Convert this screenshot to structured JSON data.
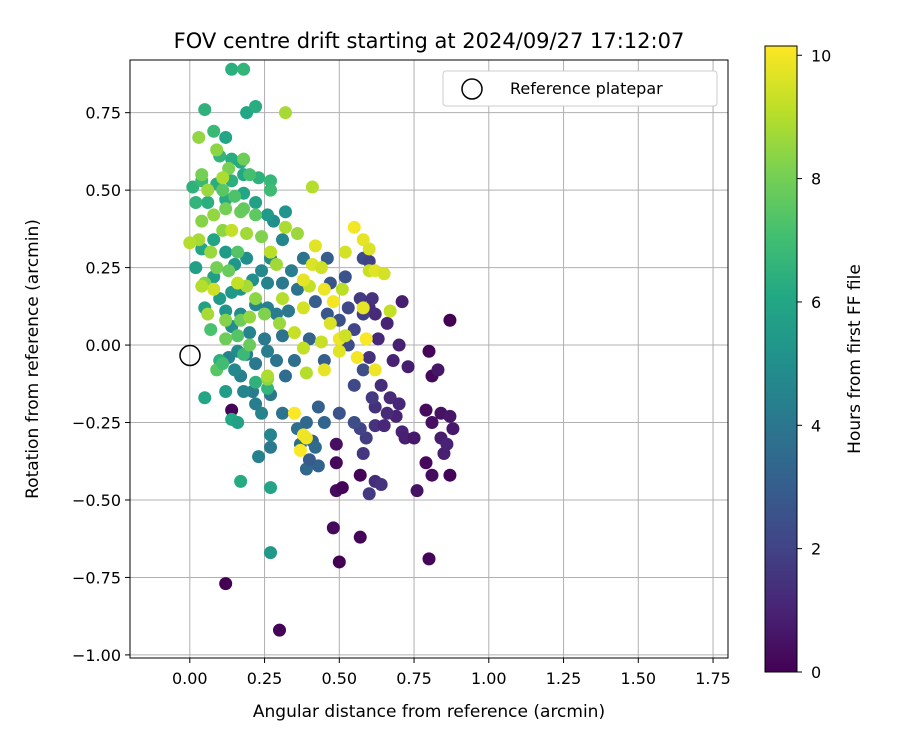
{
  "chart_data": {
    "type": "scatter",
    "title": "FOV centre drift starting at 2024/09/27 17:12:07",
    "xlabel": "Angular distance from reference (arcmin)",
    "ylabel": "Rotation from reference (arcmin)",
    "xlim": [
      -0.2,
      1.8
    ],
    "ylim": [
      -1.01,
      0.92
    ],
    "xticks": [
      "0.00",
      "0.25",
      "0.50",
      "0.75",
      "1.00",
      "1.25",
      "1.50",
      "1.75"
    ],
    "yticks": [
      "−1.00",
      "−0.75",
      "−0.50",
      "−0.25",
      "0.00",
      "0.25",
      "0.50",
      "0.75"
    ],
    "grid": true,
    "legend": {
      "position": "top-right",
      "entries": [
        {
          "label": "Reference platepar",
          "marker": "open-circle",
          "x": 0.0,
          "y": 0.0
        }
      ]
    },
    "colorbar": {
      "label": "Hours from first FF file",
      "min": 0,
      "max": 10.15,
      "ticks": [
        "0",
        "2",
        "4",
        "6",
        "8",
        "10"
      ],
      "colormap": "viridis"
    },
    "points": [
      {
        "x": 0.87,
        "y": 0.08,
        "h": 0
      },
      {
        "x": 0.8,
        "y": -0.02,
        "h": 0.1
      },
      {
        "x": 0.81,
        "y": -0.1,
        "h": 0.2
      },
      {
        "x": 0.79,
        "y": -0.21,
        "h": 0.3
      },
      {
        "x": 0.81,
        "y": -0.25,
        "h": 0.4
      },
      {
        "x": 0.84,
        "y": -0.22,
        "h": 0.5
      },
      {
        "x": 0.87,
        "y": -0.23,
        "h": 0.6
      },
      {
        "x": 0.88,
        "y": -0.27,
        "h": 0.7
      },
      {
        "x": 0.84,
        "y": -0.3,
        "h": 0.8
      },
      {
        "x": 0.85,
        "y": -0.35,
        "h": 0.9
      },
      {
        "x": 0.86,
        "y": -0.32,
        "h": 1.0
      },
      {
        "x": 0.79,
        "y": -0.38,
        "h": 0.2
      },
      {
        "x": 0.81,
        "y": -0.42,
        "h": 0.3
      },
      {
        "x": 0.87,
        "y": -0.42,
        "h": 0.1
      },
      {
        "x": 0.76,
        "y": -0.47,
        "h": 0.5
      },
      {
        "x": 0.8,
        "y": -0.69,
        "h": 0.1
      },
      {
        "x": 0.57,
        "y": -0.62,
        "h": 0.1
      },
      {
        "x": 0.48,
        "y": -0.59,
        "h": 0.2
      },
      {
        "x": 0.5,
        "y": -0.7,
        "h": 0.0
      },
      {
        "x": 0.49,
        "y": -0.47,
        "h": 0.3
      },
      {
        "x": 0.51,
        "y": -0.46,
        "h": 0.1
      },
      {
        "x": 0.57,
        "y": -0.42,
        "h": 0.1
      },
      {
        "x": 0.49,
        "y": -0.38,
        "h": 0.2
      },
      {
        "x": 0.49,
        "y": -0.32,
        "h": 0.4
      },
      {
        "x": 0.12,
        "y": -0.77,
        "h": 0.0
      },
      {
        "x": 0.3,
        "y": -0.92,
        "h": 0.1
      },
      {
        "x": 0.14,
        "y": -0.21,
        "h": 0.1
      },
      {
        "x": 0.83,
        "y": -0.08,
        "h": 0.6
      },
      {
        "x": 0.73,
        "y": -0.07,
        "h": 0.8
      },
      {
        "x": 0.7,
        "y": 0.0,
        "h": 0.9
      },
      {
        "x": 0.71,
        "y": 0.14,
        "h": 0.8
      },
      {
        "x": 0.66,
        "y": 0.07,
        "h": 1.0
      },
      {
        "x": 0.62,
        "y": 0.1,
        "h": 1.2
      },
      {
        "x": 0.6,
        "y": 0.12,
        "h": 1.3
      },
      {
        "x": 0.63,
        "y": 0.02,
        "h": 1.1
      },
      {
        "x": 0.68,
        "y": -0.05,
        "h": 1.0
      },
      {
        "x": 0.6,
        "y": -0.04,
        "h": 1.4
      },
      {
        "x": 0.64,
        "y": -0.13,
        "h": 1.3
      },
      {
        "x": 0.67,
        "y": -0.17,
        "h": 1.2
      },
      {
        "x": 0.7,
        "y": -0.19,
        "h": 1.1
      },
      {
        "x": 0.69,
        "y": -0.23,
        "h": 1.0
      },
      {
        "x": 0.66,
        "y": -0.22,
        "h": 1.2
      },
      {
        "x": 0.62,
        "y": -0.2,
        "h": 1.4
      },
      {
        "x": 0.62,
        "y": -0.26,
        "h": 1.5
      },
      {
        "x": 0.65,
        "y": -0.26,
        "h": 1.1
      },
      {
        "x": 0.71,
        "y": -0.28,
        "h": 1.0
      },
      {
        "x": 0.72,
        "y": -0.3,
        "h": 0.9
      },
      {
        "x": 0.75,
        "y": -0.3,
        "h": 0.7
      },
      {
        "x": 0.62,
        "y": -0.44,
        "h": 1.3
      },
      {
        "x": 0.64,
        "y": -0.45,
        "h": 1.5
      },
      {
        "x": 0.6,
        "y": -0.48,
        "h": 1.7
      },
      {
        "x": 0.58,
        "y": -0.35,
        "h": 1.6
      },
      {
        "x": 0.59,
        "y": -0.3,
        "h": 1.8
      },
      {
        "x": 0.57,
        "y": -0.27,
        "h": 2.0
      },
      {
        "x": 0.61,
        "y": -0.17,
        "h": 1.7
      },
      {
        "x": 0.55,
        "y": -0.13,
        "h": 2.2
      },
      {
        "x": 0.58,
        "y": -0.08,
        "h": 2.4
      },
      {
        "x": 0.53,
        "y": 0.0,
        "h": 2.3
      },
      {
        "x": 0.55,
        "y": 0.05,
        "h": 2.1
      },
      {
        "x": 0.58,
        "y": 0.1,
        "h": 1.9
      },
      {
        "x": 0.57,
        "y": 0.15,
        "h": 1.7
      },
      {
        "x": 0.61,
        "y": 0.15,
        "h": 1.5
      },
      {
        "x": 0.53,
        "y": 0.12,
        "h": 2.2
      },
      {
        "x": 0.5,
        "y": 0.08,
        "h": 2.5
      },
      {
        "x": 0.46,
        "y": 0.1,
        "h": 2.8
      },
      {
        "x": 0.42,
        "y": 0.14,
        "h": 3.0
      },
      {
        "x": 0.47,
        "y": 0.2,
        "h": 2.7
      },
      {
        "x": 0.52,
        "y": 0.22,
        "h": 2.6
      },
      {
        "x": 0.58,
        "y": 0.28,
        "h": 2.3
      },
      {
        "x": 0.46,
        "y": 0.28,
        "h": 3.0
      },
      {
        "x": 0.6,
        "y": 0.27,
        "h": 2.0
      },
      {
        "x": 0.4,
        "y": 0.02,
        "h": 3.2
      },
      {
        "x": 0.45,
        "y": -0.05,
        "h": 3.0
      },
      {
        "x": 0.43,
        "y": -0.2,
        "h": 3.1
      },
      {
        "x": 0.45,
        "y": -0.25,
        "h": 3.3
      },
      {
        "x": 0.43,
        "y": -0.39,
        "h": 3.2
      },
      {
        "x": 0.39,
        "y": -0.4,
        "h": 3.4
      },
      {
        "x": 0.41,
        "y": -0.31,
        "h": 3.0
      },
      {
        "x": 0.37,
        "y": -0.32,
        "h": 3.6
      },
      {
        "x": 0.36,
        "y": -0.27,
        "h": 3.7
      },
      {
        "x": 0.39,
        "y": -0.25,
        "h": 3.4
      },
      {
        "x": 0.5,
        "y": -0.22,
        "h": 2.6
      },
      {
        "x": 0.55,
        "y": -0.25,
        "h": 2.4
      },
      {
        "x": 0.4,
        "y": -0.37,
        "h": 2.9
      },
      {
        "x": 0.42,
        "y": -0.33,
        "h": 3.5
      },
      {
        "x": 0.31,
        "y": -0.22,
        "h": 3.8
      },
      {
        "x": 0.27,
        "y": -0.29,
        "h": 4.6
      },
      {
        "x": 0.27,
        "y": -0.33,
        "h": 4.1
      },
      {
        "x": 0.23,
        "y": -0.36,
        "h": 4.4
      },
      {
        "x": 0.24,
        "y": -0.22,
        "h": 4.5
      },
      {
        "x": 0.22,
        "y": -0.19,
        "h": 4.3
      },
      {
        "x": 0.27,
        "y": -0.16,
        "h": 4.0
      },
      {
        "x": 0.21,
        "y": -0.15,
        "h": 4.2
      },
      {
        "x": 0.18,
        "y": -0.15,
        "h": 4.6
      },
      {
        "x": 0.17,
        "y": -0.1,
        "h": 4.4
      },
      {
        "x": 0.15,
        "y": -0.08,
        "h": 4.7
      },
      {
        "x": 0.13,
        "y": -0.04,
        "h": 4.5
      },
      {
        "x": 0.16,
        "y": -0.02,
        "h": 4.8
      },
      {
        "x": 0.19,
        "y": -0.03,
        "h": 4.2
      },
      {
        "x": 0.22,
        "y": -0.06,
        "h": 4.1
      },
      {
        "x": 0.26,
        "y": -0.02,
        "h": 4.3
      },
      {
        "x": 0.29,
        "y": -0.05,
        "h": 3.9
      },
      {
        "x": 0.32,
        "y": -0.1,
        "h": 3.6
      },
      {
        "x": 0.35,
        "y": -0.05,
        "h": 3.7
      },
      {
        "x": 0.31,
        "y": 0.03,
        "h": 3.8
      },
      {
        "x": 0.25,
        "y": 0.02,
        "h": 4.1
      },
      {
        "x": 0.2,
        "y": 0.04,
        "h": 4.6
      },
      {
        "x": 0.14,
        "y": 0.06,
        "h": 5.0
      },
      {
        "x": 0.12,
        "y": 0.11,
        "h": 5.2
      },
      {
        "x": 0.17,
        "y": 0.1,
        "h": 4.8
      },
      {
        "x": 0.22,
        "y": 0.13,
        "h": 4.6
      },
      {
        "x": 0.26,
        "y": 0.12,
        "h": 4.4
      },
      {
        "x": 0.29,
        "y": 0.1,
        "h": 4.2
      },
      {
        "x": 0.33,
        "y": 0.11,
        "h": 4.0
      },
      {
        "x": 0.36,
        "y": 0.18,
        "h": 3.9
      },
      {
        "x": 0.31,
        "y": 0.2,
        "h": 4.1
      },
      {
        "x": 0.26,
        "y": 0.2,
        "h": 4.5
      },
      {
        "x": 0.24,
        "y": 0.24,
        "h": 4.7
      },
      {
        "x": 0.21,
        "y": 0.21,
        "h": 5.0
      },
      {
        "x": 0.17,
        "y": 0.18,
        "h": 5.2
      },
      {
        "x": 0.14,
        "y": 0.17,
        "h": 5.4
      },
      {
        "x": 0.1,
        "y": 0.15,
        "h": 5.5
      },
      {
        "x": 0.05,
        "y": 0.12,
        "h": 5.8
      },
      {
        "x": 0.08,
        "y": 0.22,
        "h": 5.6
      },
      {
        "x": 0.02,
        "y": 0.25,
        "h": 5.7
      },
      {
        "x": 0.04,
        "y": 0.31,
        "h": 6.0
      },
      {
        "x": 0.08,
        "y": 0.34,
        "h": 5.9
      },
      {
        "x": 0.12,
        "y": 0.3,
        "h": 5.5
      },
      {
        "x": 0.15,
        "y": 0.26,
        "h": 5.3
      },
      {
        "x": 0.19,
        "y": 0.28,
        "h": 5.0
      },
      {
        "x": 0.27,
        "y": 0.28,
        "h": 4.8
      },
      {
        "x": 0.31,
        "y": 0.34,
        "h": 4.6
      },
      {
        "x": 0.38,
        "y": 0.28,
        "h": 3.9
      },
      {
        "x": 0.34,
        "y": 0.24,
        "h": 4.3
      },
      {
        "x": 0.28,
        "y": 0.4,
        "h": 5.0
      },
      {
        "x": 0.32,
        "y": 0.43,
        "h": 5.2
      },
      {
        "x": 0.26,
        "y": 0.42,
        "h": 5.5
      },
      {
        "x": 0.22,
        "y": 0.46,
        "h": 5.8
      },
      {
        "x": 0.18,
        "y": 0.49,
        "h": 6.0
      },
      {
        "x": 0.12,
        "y": 0.47,
        "h": 6.2
      },
      {
        "x": 0.06,
        "y": 0.46,
        "h": 6.4
      },
      {
        "x": 0.02,
        "y": 0.46,
        "h": 6.6
      },
      {
        "x": 0.01,
        "y": 0.51,
        "h": 6.5
      },
      {
        "x": 0.04,
        "y": 0.53,
        "h": 6.8
      },
      {
        "x": 0.09,
        "y": 0.52,
        "h": 6.3
      },
      {
        "x": 0.14,
        "y": 0.53,
        "h": 6.4
      },
      {
        "x": 0.18,
        "y": 0.55,
        "h": 6.1
      },
      {
        "x": 0.23,
        "y": 0.54,
        "h": 6.5
      },
      {
        "x": 0.27,
        "y": 0.53,
        "h": 6.7
      },
      {
        "x": 0.27,
        "y": 0.5,
        "h": 6.9
      },
      {
        "x": 0.1,
        "y": 0.61,
        "h": 6.6
      },
      {
        "x": 0.14,
        "y": 0.6,
        "h": 6.3
      },
      {
        "x": 0.17,
        "y": 0.59,
        "h": 6.2
      },
      {
        "x": 0.12,
        "y": 0.67,
        "h": 6.0
      },
      {
        "x": 0.08,
        "y": 0.69,
        "h": 6.8
      },
      {
        "x": 0.05,
        "y": 0.76,
        "h": 6.5
      },
      {
        "x": 0.19,
        "y": 0.75,
        "h": 6.0
      },
      {
        "x": 0.22,
        "y": 0.77,
        "h": 6.3
      },
      {
        "x": 0.14,
        "y": 0.89,
        "h": 6.4
      },
      {
        "x": 0.18,
        "y": 0.89,
        "h": 6.6
      },
      {
        "x": 0.05,
        "y": -0.17,
        "h": 6.0
      },
      {
        "x": 0.12,
        "y": -0.15,
        "h": 5.6
      },
      {
        "x": 0.14,
        "y": -0.24,
        "h": 6.1
      },
      {
        "x": 0.16,
        "y": -0.25,
        "h": 5.8
      },
      {
        "x": 0.17,
        "y": -0.44,
        "h": 6.2
      },
      {
        "x": 0.27,
        "y": -0.46,
        "h": 5.9
      },
      {
        "x": 0.27,
        "y": -0.67,
        "h": 5.4
      },
      {
        "x": 0.1,
        "y": -0.05,
        "h": 6.4
      },
      {
        "x": 0.07,
        "y": 0.05,
        "h": 7.2
      },
      {
        "x": 0.09,
        "y": -0.08,
        "h": 7.5
      },
      {
        "x": 0.11,
        "y": -0.06,
        "h": 7.0
      },
      {
        "x": 0.18,
        "y": -0.03,
        "h": 6.8
      },
      {
        "x": 0.22,
        "y": -0.12,
        "h": 6.5
      },
      {
        "x": 0.26,
        "y": -0.14,
        "h": 6.6
      },
      {
        "x": 0.26,
        "y": -0.11,
        "h": 8.4
      },
      {
        "x": 0.2,
        "y": 0.0,
        "h": 7.8
      },
      {
        "x": 0.16,
        "y": 0.03,
        "h": 7.4
      },
      {
        "x": 0.12,
        "y": 0.02,
        "h": 7.9
      },
      {
        "x": 0.05,
        "y": 0.2,
        "h": 8.2
      },
      {
        "x": 0.03,
        "y": 0.34,
        "h": 8.8
      },
      {
        "x": 0.0,
        "y": 0.33,
        "h": 9.0
      },
      {
        "x": 0.07,
        "y": 0.3,
        "h": 8.6
      },
      {
        "x": 0.09,
        "y": 0.25,
        "h": 8.0
      },
      {
        "x": 0.13,
        "y": 0.24,
        "h": 7.8
      },
      {
        "x": 0.16,
        "y": 0.3,
        "h": 7.4
      },
      {
        "x": 0.11,
        "y": 0.37,
        "h": 8.4
      },
      {
        "x": 0.14,
        "y": 0.37,
        "h": 9.2
      },
      {
        "x": 0.19,
        "y": 0.36,
        "h": 8.7
      },
      {
        "x": 0.24,
        "y": 0.35,
        "h": 8.2
      },
      {
        "x": 0.22,
        "y": 0.42,
        "h": 7.6
      },
      {
        "x": 0.17,
        "y": 0.43,
        "h": 7.8
      },
      {
        "x": 0.12,
        "y": 0.44,
        "h": 8.0
      },
      {
        "x": 0.08,
        "y": 0.42,
        "h": 8.5
      },
      {
        "x": 0.04,
        "y": 0.4,
        "h": 8.3
      },
      {
        "x": 0.06,
        "y": 0.5,
        "h": 8.6
      },
      {
        "x": 0.11,
        "y": 0.5,
        "h": 7.5
      },
      {
        "x": 0.15,
        "y": 0.48,
        "h": 7.3
      },
      {
        "x": 0.18,
        "y": 0.44,
        "h": 7.7
      },
      {
        "x": 0.2,
        "y": 0.55,
        "h": 7.1
      },
      {
        "x": 0.13,
        "y": 0.57,
        "h": 8.1
      },
      {
        "x": 0.04,
        "y": 0.55,
        "h": 8.0
      },
      {
        "x": 0.03,
        "y": 0.67,
        "h": 8.5
      },
      {
        "x": 0.09,
        "y": 0.63,
        "h": 8.4
      },
      {
        "x": 0.11,
        "y": 0.54,
        "h": 8.9
      },
      {
        "x": 0.18,
        "y": 0.6,
        "h": 7.9
      },
      {
        "x": 0.32,
        "y": 0.75,
        "h": 8.8
      },
      {
        "x": 0.41,
        "y": 0.51,
        "h": 9.0
      },
      {
        "x": 0.36,
        "y": 0.36,
        "h": 8.6
      },
      {
        "x": 0.32,
        "y": 0.38,
        "h": 8.9
      },
      {
        "x": 0.27,
        "y": 0.3,
        "h": 9.1
      },
      {
        "x": 0.29,
        "y": 0.26,
        "h": 8.7
      },
      {
        "x": 0.31,
        "y": 0.15,
        "h": 9.0
      },
      {
        "x": 0.22,
        "y": 0.15,
        "h": 8.4
      },
      {
        "x": 0.19,
        "y": 0.19,
        "h": 8.8
      },
      {
        "x": 0.16,
        "y": 0.2,
        "h": 9.2
      },
      {
        "x": 0.08,
        "y": 0.18,
        "h": 9.4
      },
      {
        "x": 0.04,
        "y": 0.19,
        "h": 9.0
      },
      {
        "x": 0.06,
        "y": 0.1,
        "h": 8.8
      },
      {
        "x": 0.12,
        "y": 0.08,
        "h": 8.3
      },
      {
        "x": 0.17,
        "y": 0.08,
        "h": 7.9
      },
      {
        "x": 0.2,
        "y": 0.09,
        "h": 8.5
      },
      {
        "x": 0.25,
        "y": 0.1,
        "h": 8.2
      },
      {
        "x": 0.3,
        "y": 0.07,
        "h": 8.6
      },
      {
        "x": 0.35,
        "y": 0.04,
        "h": 9.3
      },
      {
        "x": 0.38,
        "y": 0.12,
        "h": 9.5
      },
      {
        "x": 0.4,
        "y": 0.19,
        "h": 9.2
      },
      {
        "x": 0.38,
        "y": 0.21,
        "h": 9.8
      },
      {
        "x": 0.41,
        "y": 0.26,
        "h": 9.6
      },
      {
        "x": 0.44,
        "y": 0.25,
        "h": 9.4
      },
      {
        "x": 0.42,
        "y": 0.32,
        "h": 9.7
      },
      {
        "x": 0.45,
        "y": 0.18,
        "h": 9.9
      },
      {
        "x": 0.48,
        "y": 0.14,
        "h": 10.0
      },
      {
        "x": 0.47,
        "y": 0.07,
        "h": 9.6
      },
      {
        "x": 0.44,
        "y": 0.01,
        "h": 9.3
      },
      {
        "x": 0.45,
        "y": -0.08,
        "h": 9.8
      },
      {
        "x": 0.5,
        "y": 0.02,
        "h": 9.9
      },
      {
        "x": 0.52,
        "y": 0.03,
        "h": 9.4
      },
      {
        "x": 0.51,
        "y": 0.18,
        "h": 9.1
      },
      {
        "x": 0.52,
        "y": 0.3,
        "h": 9.5
      },
      {
        "x": 0.55,
        "y": 0.38,
        "h": 10.0
      },
      {
        "x": 0.58,
        "y": 0.34,
        "h": 9.8
      },
      {
        "x": 0.6,
        "y": 0.31,
        "h": 9.6
      },
      {
        "x": 0.6,
        "y": 0.24,
        "h": 9.3
      },
      {
        "x": 0.62,
        "y": 0.24,
        "h": 9.7
      },
      {
        "x": 0.65,
        "y": 0.23,
        "h": 9.5
      },
      {
        "x": 0.67,
        "y": 0.11,
        "h": 9.2
      },
      {
        "x": 0.58,
        "y": 0.12,
        "h": 9.8
      },
      {
        "x": 0.59,
        "y": 0.02,
        "h": 10.1
      },
      {
        "x": 0.62,
        "y": -0.08,
        "h": 9.9
      },
      {
        "x": 0.56,
        "y": -0.04,
        "h": 10.0
      },
      {
        "x": 0.5,
        "y": -0.02,
        "h": 9.7
      },
      {
        "x": 0.38,
        "y": -0.01,
        "h": 9.2
      },
      {
        "x": 0.35,
        "y": -0.22,
        "h": 10.1
      },
      {
        "x": 0.38,
        "y": -0.29,
        "h": 10.0
      },
      {
        "x": 0.39,
        "y": -0.3,
        "h": 9.9
      },
      {
        "x": 0.37,
        "y": -0.34,
        "h": 10.1
      },
      {
        "x": 0.26,
        "y": -0.1,
        "h": 8.9
      },
      {
        "x": 0.39,
        "y": -0.09,
        "h": 9.0
      }
    ]
  }
}
